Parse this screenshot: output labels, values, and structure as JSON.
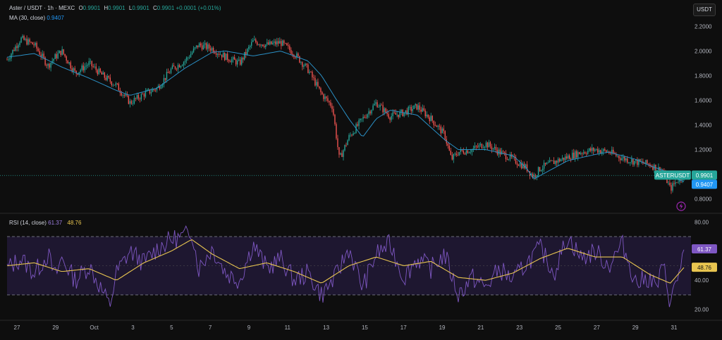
{
  "header": {
    "symbol": "Aster / USDT · 1h · MEXC",
    "o_label": "O",
    "o_value": "0.9901",
    "h_label": "H",
    "h_value": "0.9901",
    "l_label": "L",
    "l_value": "0.9901",
    "c_label": "C",
    "c_value": "0.9901",
    "change": "+0.0001 (+0.01%)",
    "ma_label": "MA (30, close)",
    "ma_value": "0.9407",
    "rsi_label": "RSI (14, close)",
    "rsi_value": "61.37",
    "rsi_ma_value": "48.76",
    "currency_button": "USDT"
  },
  "colors": {
    "up": "#26a69a",
    "down": "#ef5350",
    "ma": "#2a8fc4",
    "rsi": "#7e57c2",
    "rsi_ma": "#e8c550",
    "rsi_band": "#1e1730"
  },
  "price_tags": {
    "symbol_tag": "ASTERUSDT",
    "last_price": "0.9901",
    "ma_price": "0.9407"
  },
  "chart_data": [
    {
      "type": "candlestick",
      "name": "price",
      "ylim": [
        0.7,
        2.3
      ],
      "y_ticks": [
        "2.2000",
        "2.0000",
        "1.8000",
        "1.6000",
        "1.4000",
        "1.2000",
        "0.8000"
      ],
      "x_ticks": [
        "27",
        "29",
        "Oct",
        "3",
        "5",
        "7",
        "9",
        "11",
        "13",
        "15",
        "17",
        "19",
        "21",
        "23",
        "25",
        "27",
        "29",
        "31"
      ],
      "last_close": 0.9901,
      "ma_last": 0.9407,
      "close_path": [
        [
          0,
          1.93
        ],
        [
          1,
          2.1
        ],
        [
          2,
          2.05
        ],
        [
          3,
          1.88
        ],
        [
          3.5,
          1.95
        ],
        [
          4,
          2.0
        ],
        [
          5,
          1.82
        ],
        [
          6,
          1.9
        ],
        [
          7,
          1.8
        ],
        [
          8,
          1.72
        ],
        [
          9,
          1.58
        ],
        [
          10,
          1.65
        ],
        [
          11,
          1.7
        ],
        [
          12,
          1.85
        ],
        [
          13,
          1.92
        ],
        [
          14,
          2.05
        ],
        [
          15,
          2.02
        ],
        [
          16,
          1.95
        ],
        [
          17,
          1.9
        ],
        [
          18,
          2.08
        ],
        [
          19,
          2.05
        ],
        [
          20,
          2.07
        ],
        [
          21,
          1.98
        ],
        [
          22,
          1.85
        ],
        [
          23,
          1.65
        ],
        [
          23.8,
          1.55
        ],
        [
          24.3,
          1.12
        ],
        [
          25,
          1.3
        ],
        [
          26,
          1.45
        ],
        [
          27,
          1.58
        ],
        [
          28,
          1.47
        ],
        [
          29,
          1.5
        ],
        [
          30,
          1.55
        ],
        [
          31,
          1.45
        ],
        [
          32,
          1.32
        ],
        [
          32.5,
          1.12
        ],
        [
          33,
          1.18
        ],
        [
          34,
          1.2
        ],
        [
          35,
          1.25
        ],
        [
          36,
          1.18
        ],
        [
          37,
          1.12
        ],
        [
          38,
          1.05
        ],
        [
          38.5,
          0.98
        ],
        [
          39,
          1.05
        ],
        [
          40,
          1.1
        ],
        [
          41,
          1.14
        ],
        [
          42,
          1.18
        ],
        [
          43,
          1.2
        ],
        [
          44,
          1.18
        ],
        [
          45,
          1.13
        ],
        [
          46,
          1.1
        ],
        [
          47,
          1.08
        ],
        [
          48,
          1.02
        ],
        [
          48.5,
          0.88
        ],
        [
          49,
          0.95
        ],
        [
          49.5,
          0.99
        ]
      ],
      "ma_path": [
        [
          0,
          1.95
        ],
        [
          2,
          1.98
        ],
        [
          4,
          1.87
        ],
        [
          6,
          1.78
        ],
        [
          8,
          1.68
        ],
        [
          9,
          1.64
        ],
        [
          11,
          1.7
        ],
        [
          13,
          1.86
        ],
        [
          15,
          1.99
        ],
        [
          16,
          2.0
        ],
        [
          18,
          1.96
        ],
        [
          20,
          2.0
        ],
        [
          22,
          1.92
        ],
        [
          23,
          1.8
        ],
        [
          24,
          1.62
        ],
        [
          25,
          1.45
        ],
        [
          26,
          1.3
        ],
        [
          27,
          1.45
        ],
        [
          28,
          1.52
        ],
        [
          30,
          1.48
        ],
        [
          31,
          1.38
        ],
        [
          32,
          1.28
        ],
        [
          33,
          1.2
        ],
        [
          35,
          1.2
        ],
        [
          37,
          1.15
        ],
        [
          38,
          1.05
        ],
        [
          38.5,
          0.96
        ],
        [
          39.5,
          1.02
        ],
        [
          41,
          1.11
        ],
        [
          43,
          1.16
        ],
        [
          44,
          1.18
        ],
        [
          46,
          1.12
        ],
        [
          47,
          1.07
        ],
        [
          48,
          1.03
        ],
        [
          49,
          0.96
        ],
        [
          49.5,
          0.94
        ]
      ]
    },
    {
      "type": "line",
      "name": "RSI (14, close)",
      "ylim": [
        15,
        85
      ],
      "y_ticks": [
        "80.00",
        "40.00",
        "20.00"
      ],
      "bands": [
        30,
        70
      ],
      "midline": 50,
      "rsi_last": 61.37,
      "rsi_ma_last": 48.76,
      "rsi_path": [
        [
          0,
          48
        ],
        [
          1,
          55
        ],
        [
          2,
          45
        ],
        [
          3,
          58
        ],
        [
          3.5,
          42
        ],
        [
          4,
          55
        ],
        [
          5,
          40
        ],
        [
          6,
          50
        ],
        [
          7,
          32
        ],
        [
          7.5,
          22
        ],
        [
          8,
          45
        ],
        [
          9,
          60
        ],
        [
          10,
          52
        ],
        [
          11,
          62
        ],
        [
          12,
          68
        ],
        [
          13,
          70
        ],
        [
          13.5,
          75
        ],
        [
          14,
          48
        ],
        [
          15,
          62
        ],
        [
          16,
          45
        ],
        [
          17,
          40
        ],
        [
          18,
          65
        ],
        [
          19,
          48
        ],
        [
          20,
          55
        ],
        [
          21,
          40
        ],
        [
          22,
          45
        ],
        [
          23,
          30
        ],
        [
          24,
          42
        ],
        [
          25,
          62
        ],
        [
          26,
          35
        ],
        [
          27,
          58
        ],
        [
          28,
          65
        ],
        [
          29,
          42
        ],
        [
          30,
          55
        ],
        [
          31,
          48
        ],
        [
          32,
          58
        ],
        [
          33,
          30
        ],
        [
          34,
          42
        ],
        [
          35,
          35
        ],
        [
          36,
          48
        ],
        [
          37,
          40
        ],
        [
          38,
          52
        ],
        [
          39,
          62
        ],
        [
          40,
          45
        ],
        [
          41,
          70
        ],
        [
          42,
          55
        ],
        [
          43,
          60
        ],
        [
          44,
          50
        ],
        [
          45,
          65
        ],
        [
          46,
          38
        ],
        [
          47,
          42
        ],
        [
          47.5,
          35
        ],
        [
          48,
          50
        ],
        [
          48.5,
          25
        ],
        [
          49,
          40
        ],
        [
          49.5,
          61
        ]
      ],
      "rsi_ma_path": [
        [
          0,
          50
        ],
        [
          2,
          52
        ],
        [
          4,
          46
        ],
        [
          6,
          48
        ],
        [
          8,
          40
        ],
        [
          10,
          52
        ],
        [
          12,
          60
        ],
        [
          13.5,
          68
        ],
        [
          15,
          58
        ],
        [
          17,
          48
        ],
        [
          19,
          52
        ],
        [
          21,
          46
        ],
        [
          23,
          38
        ],
        [
          25,
          50
        ],
        [
          27,
          56
        ],
        [
          29,
          50
        ],
        [
          31,
          53
        ],
        [
          33,
          42
        ],
        [
          35,
          40
        ],
        [
          37,
          45
        ],
        [
          39,
          55
        ],
        [
          41,
          62
        ],
        [
          43,
          56
        ],
        [
          45,
          56
        ],
        [
          47,
          44
        ],
        [
          48.5,
          38
        ],
        [
          49.5,
          48.76
        ]
      ]
    }
  ]
}
